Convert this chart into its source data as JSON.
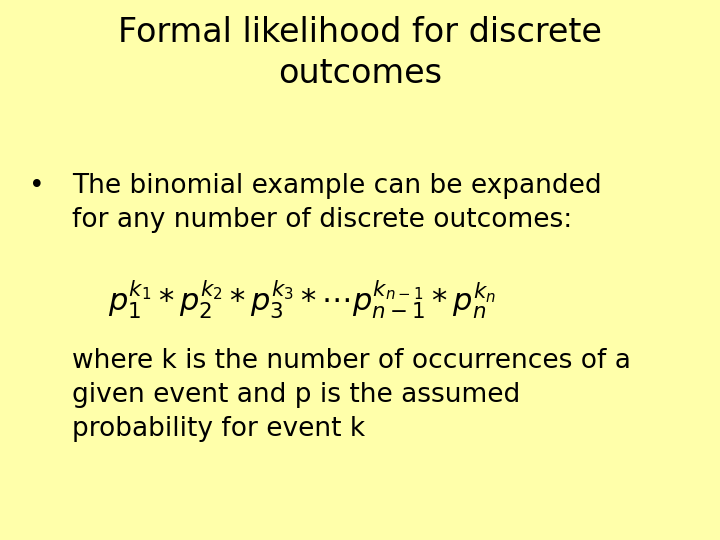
{
  "background_color": "#FFFFAA",
  "title": "Formal likelihood for discrete\noutcomes",
  "title_fontsize": 24,
  "title_color": "#000000",
  "title_family": "sans-serif",
  "bullet_text": "The binomial example can be expanded\nfor any number of discrete outcomes:",
  "bullet_fontsize": 19,
  "formula": "$p_1^{k_1} * p_2^{k_2} * p_3^{k_3} * {\\cdots}p_{n-1}^{k_{n-1}} * p_n^{k_n}$",
  "formula_fontsize": 22,
  "body_text": "where k is the number of occurrences of a\ngiven event and p is the assumed\nprobability for event k",
  "body_fontsize": 19
}
